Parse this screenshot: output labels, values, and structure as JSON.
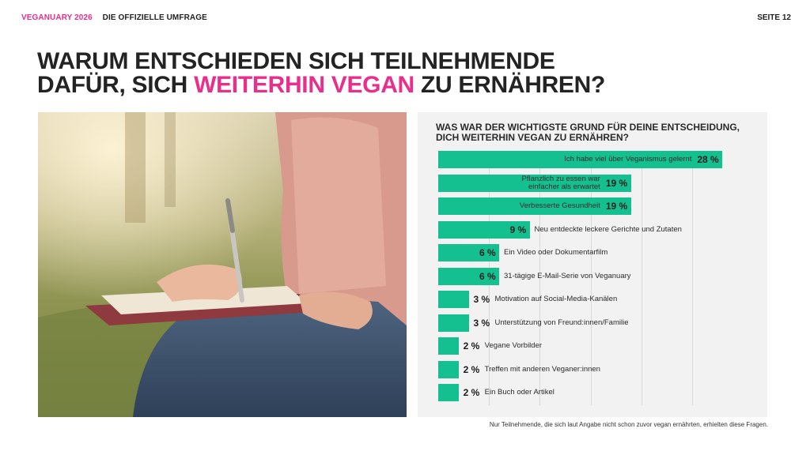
{
  "header": {
    "brand": "VEGANUARY 2026",
    "subtitle": "DIE OFFIZIELLE UMFRAGE",
    "page": "SEITE 12"
  },
  "headline": {
    "line1": "WARUM ENTSCHIEDEN SICH TEILNEHMENDE",
    "line2_pre": "DAFÜR, SICH ",
    "line2_accent": "WEITERHIN VEGAN",
    "line2_post": " ZU ERNÄHREN?"
  },
  "colors": {
    "accent": "#ea2e8c",
    "bar": "#14c08f",
    "panel": "#f2f2f2"
  },
  "chart_data": {
    "type": "bar",
    "orientation": "horizontal",
    "title": "WAS WAR DER WICHTIGSTE GRUND FÜR DEINE ENTSCHEIDUNG, DICH WEITERHIN VEGAN ZU ERNÄHREN?",
    "categories": [
      "Ich habe viel über Veganismus gelernt",
      "Pflanzlich zu essen war einfacher als erwartet",
      "Verbesserte Gesundheit",
      "Neu entdeckte leckere Gerichte und Zutaten",
      "Ein Video oder Dokumentarfilm",
      "31-tägige E-Mail-Serie von Veganuary",
      "Motivation auf Social-Media-Kanälen",
      "Unterstützung von Freund:innen/Familie",
      "Vegane Vorbilder",
      "Treffen mit anderen Veganer:innen",
      "Ein Buch oder Artikel"
    ],
    "values": [
      28,
      19,
      19,
      9,
      6,
      6,
      3,
      3,
      2,
      2,
      2
    ],
    "labels": [
      "28 %",
      "19 %",
      "19 %",
      "9 %",
      "6 %",
      "6 %",
      "3 %",
      "3 %",
      "2 %",
      "2 %",
      "2 %"
    ],
    "xlim": [
      0,
      30
    ],
    "grid": true
  },
  "footnote": "Nur Teilnehmende, die sich laut Angabe nicht schon zuvor vegan ernährten, erhielten diese Fragen."
}
